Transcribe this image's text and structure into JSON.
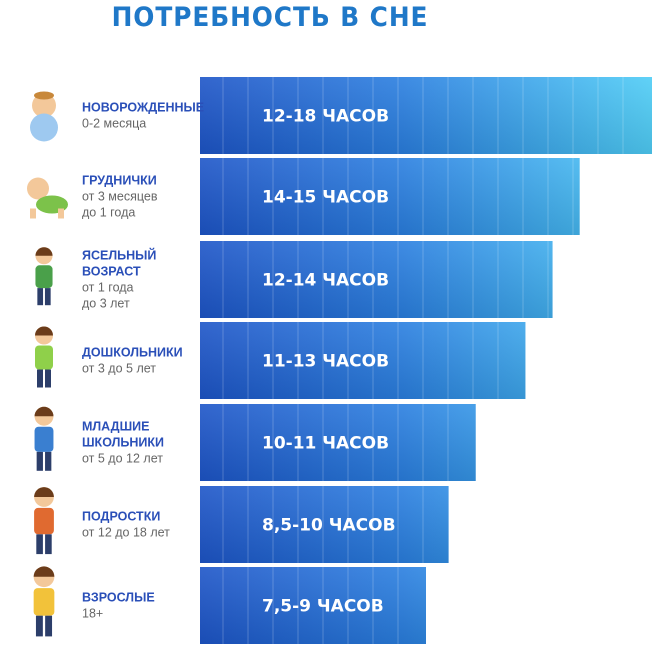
{
  "title": "ПОТРЕБНОСТЬ В СНЕ",
  "chart_data": {
    "type": "bar",
    "orientation": "horizontal",
    "title": "ПОТРЕБНОСТЬ В СНЕ",
    "xlabel": "",
    "ylabel": "",
    "categories": [
      {
        "name": [
          "НОВОРОЖДЕННЫЕ"
        ],
        "sub": [
          "0-2 месяца"
        ],
        "icon": "newborn-baby-icon"
      },
      {
        "name": [
          "ГРУДНИЧКИ"
        ],
        "sub": [
          "от 3 месяцев",
          "до 1 года"
        ],
        "icon": "crawling-baby-icon"
      },
      {
        "name": [
          "ЯСЕЛЬНЫЙ",
          "ВОЗРАСТ"
        ],
        "sub": [
          "от 1 года",
          "до 3 лет"
        ],
        "icon": "toddler-icon"
      },
      {
        "name": [
          "ДОШКОЛЬНИКИ"
        ],
        "sub": [
          "от 3 до 5 лет"
        ],
        "icon": "preschooler-icon"
      },
      {
        "name": [
          "МЛАДШИЕ",
          "ШКОЛЬНИКИ"
        ],
        "sub": [
          "от 5 до 12 лет"
        ],
        "icon": "schoolkid-icon"
      },
      {
        "name": [
          "ПОДРОСТКИ"
        ],
        "sub": [
          "от 12 до 18 лет"
        ],
        "icon": "teenager-icon"
      },
      {
        "name": [
          "ВЗРОСЛЫЕ"
        ],
        "sub": [
          "18+"
        ],
        "icon": "adult-icon"
      }
    ],
    "values": [
      {
        "min": 12,
        "max": 18
      },
      {
        "min": 14,
        "max": 15
      },
      {
        "min": 12,
        "max": 14
      },
      {
        "min": 11,
        "max": 13
      },
      {
        "min": 10,
        "max": 11
      },
      {
        "min": 8.5,
        "max": 10
      },
      {
        "min": 7.5,
        "max": 9
      }
    ],
    "bar_labels": [
      "12-18 ЧАСОВ",
      "14-15 ЧАСОВ",
      "12-14 ЧАСОВ",
      "11-13 ЧАСОВ",
      "10-11 ЧАСОВ",
      "8,5-10 ЧАСОВ",
      "7,5-9 ЧАСОВ"
    ],
    "bar_relative_length": [
      1.0,
      0.84,
      0.78,
      0.72,
      0.61,
      0.55,
      0.5
    ],
    "colors": {
      "bar_dark": "#1f5fd0",
      "bar_light": "#4cc8f5",
      "title": "#1f78c8",
      "category_name": "#2a4fb8",
      "category_sub": "#666666"
    }
  }
}
